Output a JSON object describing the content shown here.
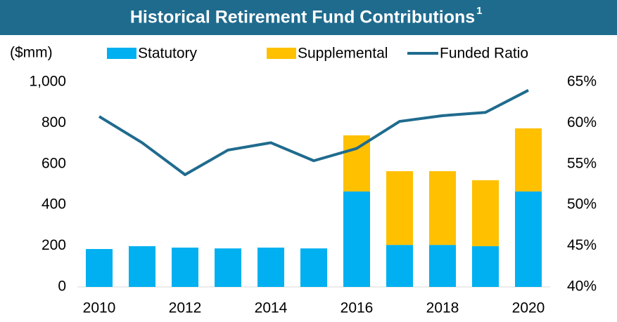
{
  "chart_data": {
    "type": "bar_line",
    "title": "Historical Retirement Fund Contributions",
    "title_footnote": "1",
    "y_label": "($mm)",
    "categories": [
      "2010",
      null,
      "2012",
      null,
      "2014",
      null,
      "2016",
      null,
      "2018",
      null,
      "2020"
    ],
    "series": [
      {
        "name": "Statutory",
        "color": "#00b0f0",
        "type": "bar",
        "values": [
          185,
          199,
          192,
          188,
          192,
          188,
          466,
          205,
          205,
          199,
          466
        ]
      },
      {
        "name": "Supplemental",
        "color": "#ffc000",
        "type": "bar",
        "values": [
          null,
          null,
          null,
          null,
          null,
          null,
          274,
          360,
          360,
          322,
          308
        ]
      },
      {
        "name": "Funded Ratio",
        "color": "#1f6b8e",
        "type": "line",
        "axis": "y2",
        "values": [
          60.8,
          57.6,
          53.7,
          56.7,
          57.6,
          55.4,
          56.9,
          60.2,
          60.9,
          61.3,
          64.0
        ]
      }
    ],
    "ylim": [
      0,
      1000
    ],
    "yticks": [
      0,
      200,
      400,
      600,
      800,
      {
        "value": 1000,
        "label": "1,000"
      }
    ],
    "y2lim": [
      40,
      65
    ],
    "y2ticks": [
      {
        "value": 40,
        "label": "40%"
      },
      {
        "value": 45,
        "label": "45%"
      },
      {
        "value": 50,
        "label": "50%"
      },
      {
        "value": 55,
        "label": "55%"
      },
      {
        "value": 60,
        "label": "60%"
      },
      {
        "value": 65,
        "label": "65%"
      }
    ],
    "legend": "top"
  }
}
